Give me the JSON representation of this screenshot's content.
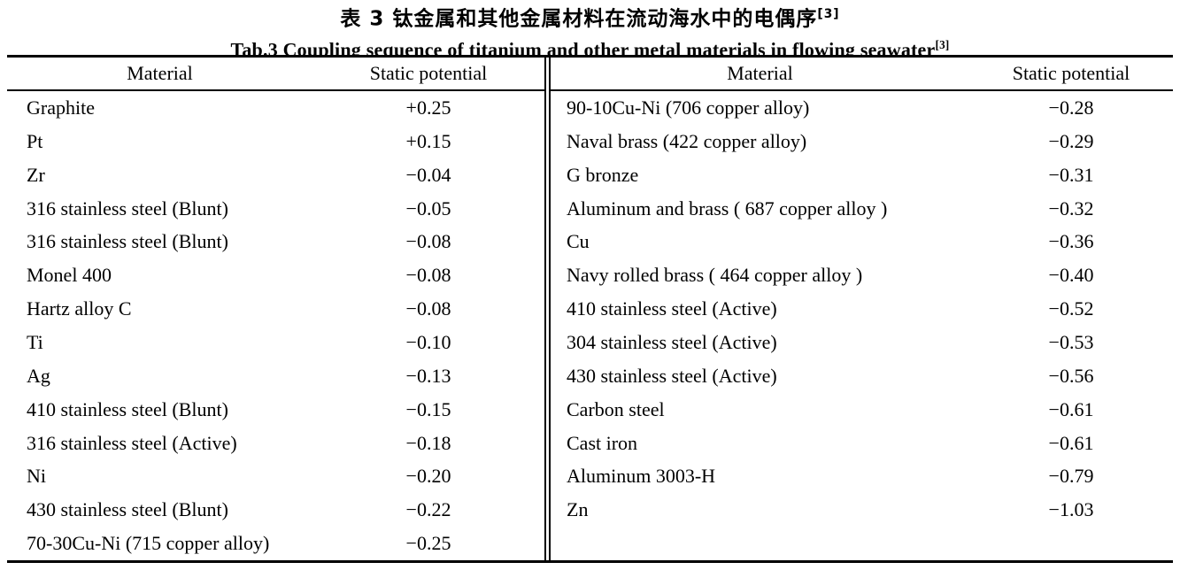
{
  "page": {
    "background": "#ffffff",
    "text_color": "#000000"
  },
  "title": {
    "zh": "表 3  钛金属和其他金属材料在流动海水中的电偶序",
    "zh_ref": "[3]",
    "en": "Tab.3 Coupling sequence of titanium and other metal materials in flowing seawater",
    "en_ref": "[3]"
  },
  "table": {
    "header": {
      "material": "Material",
      "static_potential": "Static potential"
    },
    "left": {
      "rows": [
        {
          "material": "Graphite",
          "potential": "+0.25"
        },
        {
          "material": "Pt",
          "potential": "+0.15"
        },
        {
          "material": "Zr",
          "potential": "−0.04"
        },
        {
          "material": "316 stainless steel (Blunt)",
          "potential": "−0.05"
        },
        {
          "material": "316 stainless steel (Blunt)",
          "potential": "−0.08"
        },
        {
          "material": "Monel 400",
          "potential": "−0.08"
        },
        {
          "material": "Hartz alloy C",
          "potential": "−0.08"
        },
        {
          "material": "Ti",
          "potential": "−0.10"
        },
        {
          "material": "Ag",
          "potential": "−0.13"
        },
        {
          "material": "410 stainless steel (Blunt)",
          "potential": "−0.15"
        },
        {
          "material": "316 stainless steel (Active)",
          "potential": "−0.18"
        },
        {
          "material": "Ni",
          "potential": "−0.20"
        },
        {
          "material": "430 stainless steel (Blunt)",
          "potential": "−0.22"
        },
        {
          "material": "70-30Cu-Ni (715 copper alloy)",
          "potential": "−0.25"
        }
      ]
    },
    "right": {
      "rows": [
        {
          "material": "90-10Cu-Ni (706 copper alloy)",
          "potential": "−0.28"
        },
        {
          "material": "Naval brass (422 copper alloy)",
          "potential": "−0.29"
        },
        {
          "material": "G bronze",
          "potential": "−0.31"
        },
        {
          "material": "Aluminum and brass ( 687 copper alloy )",
          "potential": "−0.32"
        },
        {
          "material": "Cu",
          "potential": "−0.36"
        },
        {
          "material": "Navy rolled brass ( 464 copper alloy )",
          "potential": "−0.40"
        },
        {
          "material": "410 stainless steel (Active)",
          "potential": "−0.52"
        },
        {
          "material": "304 stainless steel (Active)",
          "potential": "−0.53"
        },
        {
          "material": "430 stainless steel (Active)",
          "potential": "−0.56"
        },
        {
          "material": "Carbon steel",
          "potential": "−0.61"
        },
        {
          "material": "Cast iron",
          "potential": "−0.61"
        },
        {
          "material": "Aluminum 3003-H",
          "potential": "−0.79"
        },
        {
          "material": "Zn",
          "potential": "−1.03"
        }
      ]
    }
  }
}
